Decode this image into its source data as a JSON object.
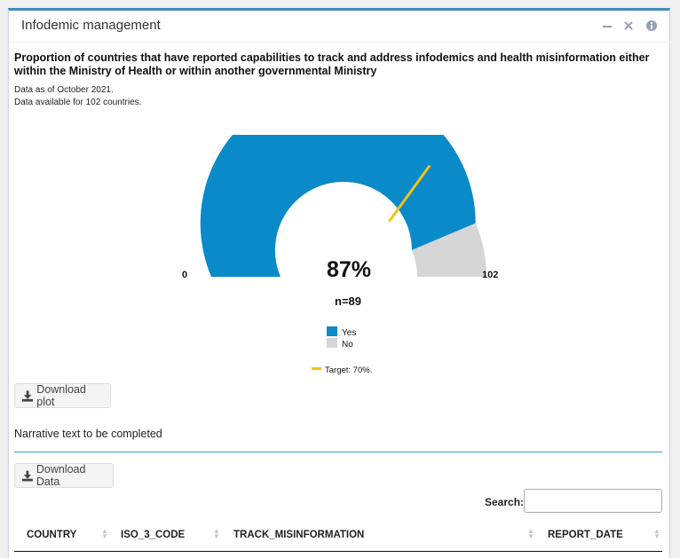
{
  "panel": {
    "title": "Infodemic management",
    "tools": [
      "minimize-icon",
      "close-icon",
      "info-icon"
    ]
  },
  "chart": {
    "heading": "Proportion of countries that have reported capabilities to track and address infodemics and health misinformation either within the Ministry of Health or within another governmental Ministry",
    "data_as_of": "Data as of October 2021.",
    "data_available": "Data available for 102 countries.",
    "center_label": "87%",
    "n_label": "n=89",
    "min_label": "0",
    "max_label": "102",
    "legend_yes": "Yes",
    "legend_no": "No",
    "target_label": "Target: 70%.",
    "colors": {
      "yes": "#0a8ac8",
      "no": "#d6d6d6",
      "target": "#f0c419"
    }
  },
  "chart_data": {
    "type": "gauge",
    "min": 0,
    "max": 102,
    "value": 89,
    "percent": 87,
    "target_percent": 70,
    "series": [
      {
        "name": "Yes",
        "value": 89
      },
      {
        "name": "No",
        "value": 13
      }
    ]
  },
  "buttons": {
    "download_plot": "Download plot",
    "download_data": "Download Data"
  },
  "narrative": "Narrative text to be completed",
  "search": {
    "label": "Search:",
    "value": ""
  },
  "table": {
    "columns": [
      "COUNTRY",
      "ISO_3_CODE",
      "TRACK_MISINFORMATION",
      "REPORT_DATE"
    ]
  }
}
